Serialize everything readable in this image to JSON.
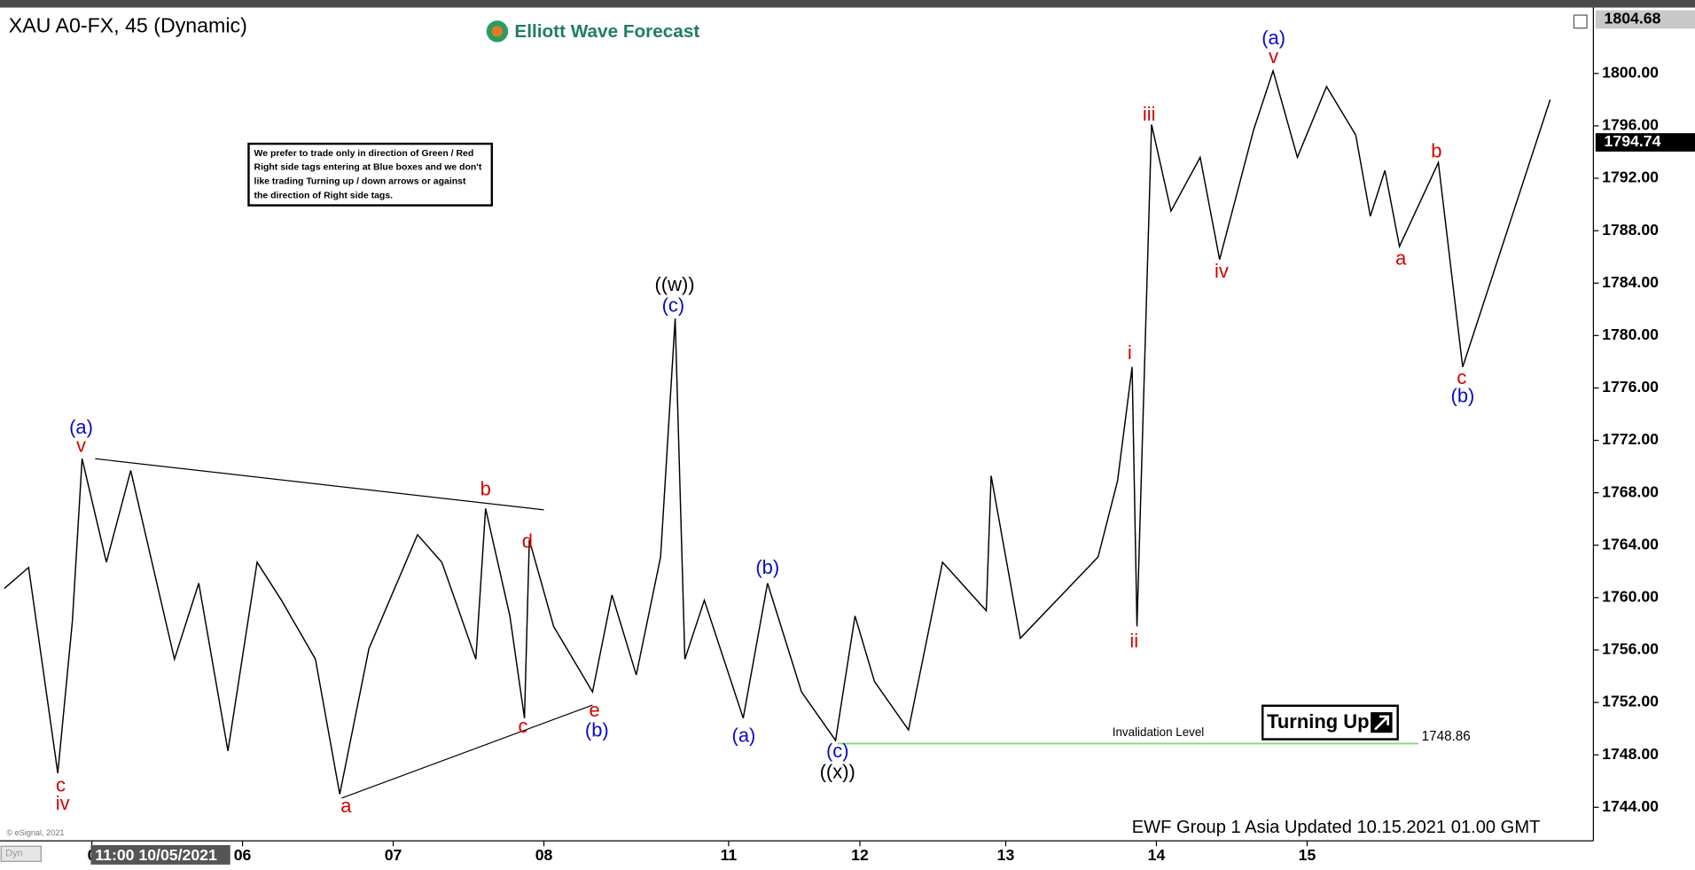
{
  "chart_data": {
    "type": "line",
    "title": "XAU A0-FX, 45 (Dynamic)",
    "brand": "Elliott Wave Forecast",
    "note": [
      "We prefer to trade only in direction of Green / Red",
      "Right side tags entering at Blue boxes and we don't",
      "like trading Turning up / down arrows or against",
      "the direction of Right side tags."
    ],
    "badge": "Turning Up",
    "footer": "EWF Group 1 Asia Updated 10.15.2021 01.00 GMT",
    "copyright": "© eSignal, 2021",
    "corner": "Dyn",
    "cursor_label": "11:00 10/05/2021",
    "color": "#000000",
    "x": [
      0,
      5,
      11,
      14,
      16,
      21,
      26,
      35,
      40,
      46,
      52,
      57,
      64,
      69,
      75,
      85,
      90,
      97,
      99,
      104,
      107,
      108,
      113,
      121,
      125,
      130,
      135,
      138,
      140,
      144,
      152,
      157,
      164,
      171,
      175,
      179,
      186,
      193,
      202,
      203,
      209,
      225,
      229,
      232,
      233,
      236,
      240,
      246,
      250,
      257,
      261,
      266,
      272,
      278
    ],
    "values": [
      1760.7,
      1762.3,
      1746.6,
      1758.2,
      1770.6,
      1762.7,
      1769.7,
      1755.3,
      1761.1,
      1748.3,
      1762.7,
      1759.8,
      1755.3,
      1745,
      1756.1,
      1764.8,
      1762.7,
      1755.3,
      1766.8,
      1758.6,
      1750.8,
      1764.4,
      1757.8,
      1752.8,
      1760.2,
      1754.1,
      1763.1,
      1781.3,
      1755.3,
      1759.8,
      1750.8,
      1761.1,
      1752.8,
      1749.1,
      1758.6,
      1753.6,
      1749.9,
      1762.7,
      1759.0,
      1769.3,
      1756.9,
      1763.1,
      1768.9,
      1777.6,
      1757.8,
      1796.1,
      1789.5,
      1793.6,
      1785.8,
      1795.7,
      1800.2,
      1793.6,
      1799.0,
      1795.3
    ],
    "projection": {
      "x": [
        278,
        281,
        284,
        287,
        295,
        300,
        318
      ],
      "values": [
        1795.3,
        1789.1,
        1792.6,
        1786.8,
        1793.2,
        1777.6,
        1798.0
      ]
    },
    "xlim": [
      0,
      326
    ],
    "xticks": [
      {
        "value": 18,
        "label": "0"
      },
      {
        "value": 49,
        "label": "06"
      },
      {
        "value": 80,
        "label": "07"
      },
      {
        "value": 111,
        "label": "08"
      },
      {
        "value": 149,
        "label": "11"
      },
      {
        "value": 176,
        "label": "12"
      },
      {
        "value": 206,
        "label": "13"
      },
      {
        "value": 237,
        "label": "14"
      },
      {
        "value": 268,
        "label": "15"
      }
    ],
    "ylim": [
      1741.44,
      1804.78
    ],
    "yticks": [
      {
        "value": 1744,
        "label": "1744.00"
      },
      {
        "value": 1748,
        "label": "1748.00"
      },
      {
        "value": 1752,
        "label": "1752.00"
      },
      {
        "value": 1756,
        "label": "1756.00"
      },
      {
        "value": 1760,
        "label": "1760.00"
      },
      {
        "value": 1764,
        "label": "1764.00"
      },
      {
        "value": 1768,
        "label": "1768.00"
      },
      {
        "value": 1772,
        "label": "1772.00"
      },
      {
        "value": 1776,
        "label": "1776.00"
      },
      {
        "value": 1780,
        "label": "1780.00"
      },
      {
        "value": 1784,
        "label": "1784.00"
      },
      {
        "value": 1788,
        "label": "1788.00"
      },
      {
        "value": 1792,
        "label": "1792.00"
      },
      {
        "value": 1796,
        "label": "1796.00"
      },
      {
        "value": 1800,
        "label": "1800.00"
      }
    ],
    "price_tags": [
      {
        "value": 1804.68,
        "color": "#c8c8c8",
        "text_color": "#000000"
      },
      {
        "value": 1794.74,
        "color": "#000000",
        "text_color": "#ffffff"
      }
    ],
    "trendlines": [
      {
        "x": [
          18.7,
          111.0
        ],
        "values": [
          1770.6,
          1766.7
        ]
      },
      {
        "x": [
          69.4,
          121.0
        ],
        "values": [
          1744.7,
          1751.8
        ]
      }
    ],
    "invalidation": {
      "label": "Invalidation Level",
      "value": 1748.86,
      "x": [
        171.4,
        290.9
      ],
      "color": "#7ddc7d"
    },
    "annotations": [
      {
        "text": "(a)",
        "color": "#0a0ac8",
        "x": 15.8,
        "y": 1772.9
      },
      {
        "text": "v",
        "color": "#d40000",
        "x": 15.8,
        "y": 1771.5
      },
      {
        "text": "c",
        "color": "#d40000",
        "x": 11.6,
        "y": 1745.6
      },
      {
        "text": "iv",
        "color": "#d40000",
        "x": 12.0,
        "y": 1744.2
      },
      {
        "text": "a",
        "color": "#d40000",
        "x": 70.3,
        "y": 1744.0
      },
      {
        "text": "b",
        "color": "#d40000",
        "x": 99.0,
        "y": 1768.2
      },
      {
        "text": "c",
        "color": "#d40000",
        "x": 106.7,
        "y": 1750.1
      },
      {
        "text": "d",
        "color": "#d40000",
        "x": 107.6,
        "y": 1764.2
      },
      {
        "text": "e",
        "color": "#d40000",
        "x": 121.4,
        "y": 1751.3
      },
      {
        "text": "(b)",
        "color": "#0a0ac8",
        "x": 121.9,
        "y": 1749.8
      },
      {
        "text": "((w))",
        "color": "#000000",
        "x": 137.9,
        "y": 1783.8
      },
      {
        "text": "(c)",
        "color": "#0a0ac8",
        "x": 137.6,
        "y": 1782.2
      },
      {
        "text": "(a)",
        "color": "#0a0ac8",
        "x": 152.1,
        "y": 1749.4
      },
      {
        "text": "(b)",
        "color": "#0a0ac8",
        "x": 157.0,
        "y": 1762.2
      },
      {
        "text": "(c)",
        "color": "#0a0ac8",
        "x": 171.4,
        "y": 1748.2
      },
      {
        "text": "((x))",
        "color": "#000000",
        "x": 171.4,
        "y": 1746.6
      },
      {
        "text": "i",
        "color": "#d40000",
        "x": 231.5,
        "y": 1778.6
      },
      {
        "text": "ii",
        "color": "#d40000",
        "x": 232.4,
        "y": 1756.6
      },
      {
        "text": "iii",
        "color": "#d40000",
        "x": 235.5,
        "y": 1796.8
      },
      {
        "text": "iv",
        "color": "#d40000",
        "x": 250.4,
        "y": 1784.8
      },
      {
        "text": "(a)",
        "color": "#0a0ac8",
        "x": 261.1,
        "y": 1802.6
      },
      {
        "text": "v",
        "color": "#d40000",
        "x": 261.1,
        "y": 1801.2
      },
      {
        "text": "a",
        "color": "#d40000",
        "x": 287.3,
        "y": 1785.8
      },
      {
        "text": "b",
        "color": "#d40000",
        "x": 294.6,
        "y": 1794.0
      },
      {
        "text": "c",
        "color": "#d40000",
        "x": 299.8,
        "y": 1776.7
      },
      {
        "text": "(b)",
        "color": "#0a0ac8",
        "x": 300.0,
        "y": 1775.3
      }
    ]
  }
}
